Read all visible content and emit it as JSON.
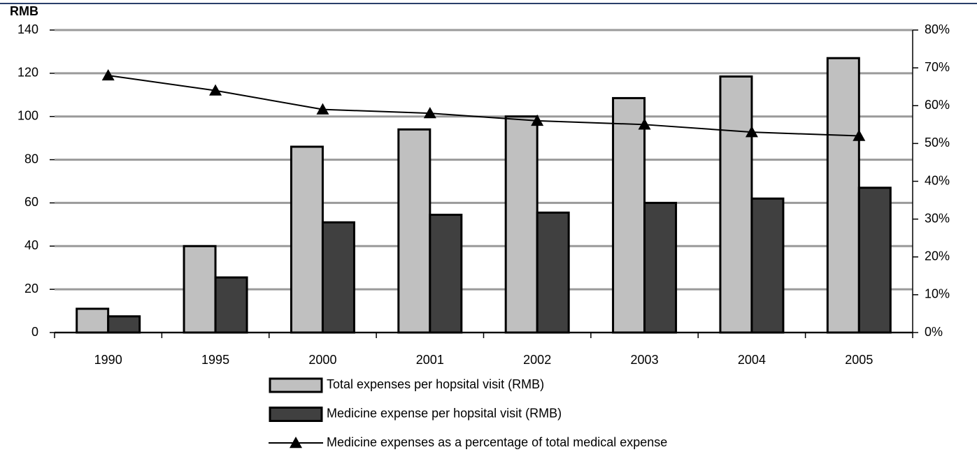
{
  "chart_data": {
    "type": "bar",
    "y_label": "RMB",
    "categories": [
      "1990",
      "1995",
      "2000",
      "2001",
      "2002",
      "2003",
      "2004",
      "2005"
    ],
    "series": [
      {
        "name": "Total expenses per hopsital visit (RMB)",
        "color": "#c0c0c0",
        "type": "bar",
        "values": [
          11,
          40,
          86,
          94,
          100,
          108.5,
          118.5,
          127
        ]
      },
      {
        "name": "Medicine expense per hopsital visit (RMB)",
        "color": "#404040",
        "type": "bar",
        "values": [
          7.5,
          25.5,
          51,
          54.5,
          55.5,
          60,
          62,
          67
        ]
      },
      {
        "name": "Medicine expenses as a percentage of total medical expense",
        "color": "#000000",
        "type": "line",
        "axis": "y2",
        "values": [
          68,
          64,
          59,
          58,
          56,
          55,
          53,
          52
        ]
      }
    ],
    "ylim": [
      0,
      140
    ],
    "yticks": [
      0,
      20,
      40,
      60,
      80,
      100,
      120,
      140
    ],
    "y2lim": [
      0,
      80
    ],
    "y2ticks": [
      {
        "value": 0,
        "label": "0%"
      },
      {
        "value": 10,
        "label": "10%"
      },
      {
        "value": 20,
        "label": "20%"
      },
      {
        "value": 30,
        "label": "30%"
      },
      {
        "value": 40,
        "label": "40%"
      },
      {
        "value": 50,
        "label": "50%"
      },
      {
        "value": 60,
        "label": "60%"
      },
      {
        "value": 70,
        "label": "70%"
      },
      {
        "value": 80,
        "label": "80%"
      }
    ],
    "grid": true
  }
}
